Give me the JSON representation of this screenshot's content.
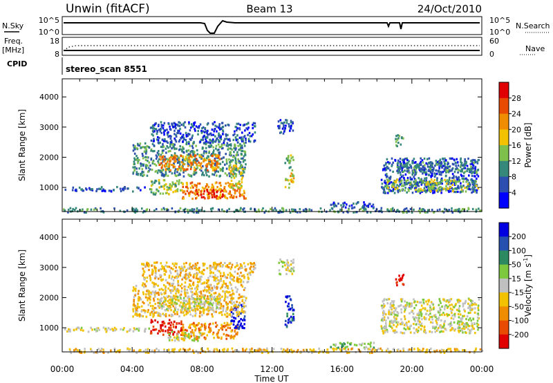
{
  "header": {
    "station": "Unwin (fitACF)",
    "beam": "Beam 13",
    "date": "24/Oct/2010"
  },
  "top_panels": {
    "nsky_label": "N.Sky",
    "nsearch_label": "N.Search",
    "nsky_ticks": [
      "10^5",
      "10^0"
    ],
    "nsearch_ticks": [
      "10^5",
      "10^0"
    ],
    "freq_label": "Freq.",
    "freq_unit": "[MHz]",
    "freq_ticks": [
      "18",
      "8"
    ],
    "nave_label": "Nave",
    "nave_ticks": [
      "60",
      "0"
    ],
    "cpid_label": "CPID",
    "cpid_value": "stereo_scan 8551"
  },
  "chart_data": [
    {
      "type": "heatmap",
      "name": "power",
      "ylabel": "Slant Range [km]",
      "xlabel": "",
      "y_ticks": [
        1000,
        2000,
        3000,
        4000
      ],
      "ylim": [
        200,
        4600
      ],
      "x_ticks": [
        "00:00",
        "04:00",
        "08:00",
        "12:00",
        "16:00",
        "20:00",
        "00:00"
      ],
      "xlim_hours": [
        0,
        24
      ],
      "colorbar": {
        "label": "Power [dB]",
        "ticks": [
          "4",
          "8",
          "12",
          "16",
          "20",
          "24",
          "28"
        ],
        "colors": [
          "#0000ff",
          "#2d4fb0",
          "#35887a",
          "#7fbf4c",
          "#f2c200",
          "#f08c00",
          "#e84a00",
          "#e00000"
        ]
      },
      "regions": [
        {
          "t0": 0.1,
          "t1": 5.0,
          "r0": 900,
          "r1": 1050,
          "level": 1
        },
        {
          "t0": 5.0,
          "t1": 6.8,
          "r0": 800,
          "r1": 1300,
          "level": 3
        },
        {
          "t0": 6.8,
          "t1": 10.5,
          "r0": 650,
          "r1": 1200,
          "level": 5
        },
        {
          "t0": 7.6,
          "t1": 9.2,
          "r0": 700,
          "r1": 950,
          "level": 7
        },
        {
          "t0": 4.0,
          "t1": 10.5,
          "r0": 1400,
          "r1": 2500,
          "level": 2
        },
        {
          "t0": 5.5,
          "t1": 9.0,
          "r0": 1600,
          "r1": 2100,
          "level": 5
        },
        {
          "t0": 9.5,
          "t1": 10.3,
          "r0": 1000,
          "r1": 1800,
          "level": 4
        },
        {
          "t0": 5.0,
          "t1": 11.0,
          "r0": 2500,
          "r1": 3200,
          "level": 1
        },
        {
          "t0": 12.7,
          "t1": 13.2,
          "r0": 1000,
          "r1": 1500,
          "level": 4
        },
        {
          "t0": 12.7,
          "t1": 13.2,
          "r0": 1600,
          "r1": 2100,
          "level": 3
        },
        {
          "t0": 12.3,
          "t1": 13.2,
          "r0": 2800,
          "r1": 3300,
          "level": 1
        },
        {
          "t0": 15.3,
          "t1": 17.8,
          "r0": 350,
          "r1": 550,
          "level": 1
        },
        {
          "t0": 18.2,
          "t1": 23.8,
          "r0": 850,
          "r1": 2000,
          "level": 1
        },
        {
          "t0": 18.5,
          "t1": 23.8,
          "r0": 900,
          "r1": 1300,
          "level": 3
        },
        {
          "t0": 19.0,
          "t1": 19.5,
          "r0": 2400,
          "r1": 2800,
          "level": 3
        },
        {
          "t0": 19.0,
          "t1": 23.8,
          "r0": 1500,
          "r1": 1900,
          "level": 2
        },
        {
          "t0": 0.0,
          "t1": 24.0,
          "r0": 200,
          "r1": 350,
          "level": 2
        }
      ]
    },
    {
      "type": "heatmap",
      "name": "velocity",
      "ylabel": "Slant Range [km]",
      "xlabel": "Time UT",
      "y_ticks": [
        1000,
        2000,
        3000,
        4000
      ],
      "ylim": [
        200,
        4600
      ],
      "x_ticks": [
        "00:00",
        "04:00",
        "08:00",
        "12:00",
        "16:00",
        "20:00",
        "00:00"
      ],
      "xlim_hours": [
        0,
        24
      ],
      "colorbar": {
        "label": "Velocity [m s^-1]",
        "ticks": [
          "200",
          "100",
          "50",
          "15",
          "-15",
          "-50",
          "-100",
          "-200"
        ],
        "colors": [
          "#0000e0",
          "#2650b0",
          "#2d8a60",
          "#7ec83e",
          "#c0c0c0",
          "#f2c200",
          "#f08c00",
          "#e84a00",
          "#e00000"
        ]
      },
      "regions": [
        {
          "t0": 0.1,
          "t1": 5.0,
          "r0": 900,
          "r1": 1050,
          "level": 4
        },
        {
          "t0": 5.0,
          "t1": 6.8,
          "r0": 800,
          "r1": 1300,
          "level": 8
        },
        {
          "t0": 6.8,
          "t1": 10.0,
          "r0": 650,
          "r1": 1200,
          "level": 6
        },
        {
          "t0": 6.0,
          "t1": 8.0,
          "r0": 600,
          "r1": 900,
          "level": 4
        },
        {
          "t0": 9.6,
          "t1": 10.4,
          "r0": 1000,
          "r1": 1800,
          "level": 0
        },
        {
          "t0": 4.0,
          "t1": 10.5,
          "r0": 1400,
          "r1": 2500,
          "level": 5
        },
        {
          "t0": 5.5,
          "t1": 9.0,
          "r0": 1600,
          "r1": 2100,
          "level": 4
        },
        {
          "t0": 4.5,
          "t1": 11.0,
          "r0": 2500,
          "r1": 3200,
          "level": 5
        },
        {
          "t0": 12.7,
          "t1": 13.2,
          "r0": 1000,
          "r1": 1500,
          "level": 1
        },
        {
          "t0": 12.7,
          "t1": 13.2,
          "r0": 1600,
          "r1": 2100,
          "level": 0
        },
        {
          "t0": 12.3,
          "t1": 13.2,
          "r0": 2800,
          "r1": 3300,
          "level": 4
        },
        {
          "t0": 15.3,
          "t1": 17.8,
          "r0": 350,
          "r1": 550,
          "level": 3
        },
        {
          "t0": 18.2,
          "t1": 23.8,
          "r0": 850,
          "r1": 2000,
          "level": 4
        },
        {
          "t0": 19.0,
          "t1": 19.5,
          "r0": 2400,
          "r1": 2800,
          "level": 8
        },
        {
          "t0": 0.0,
          "t1": 24.0,
          "r0": 200,
          "r1": 350,
          "level": 5
        }
      ]
    }
  ]
}
